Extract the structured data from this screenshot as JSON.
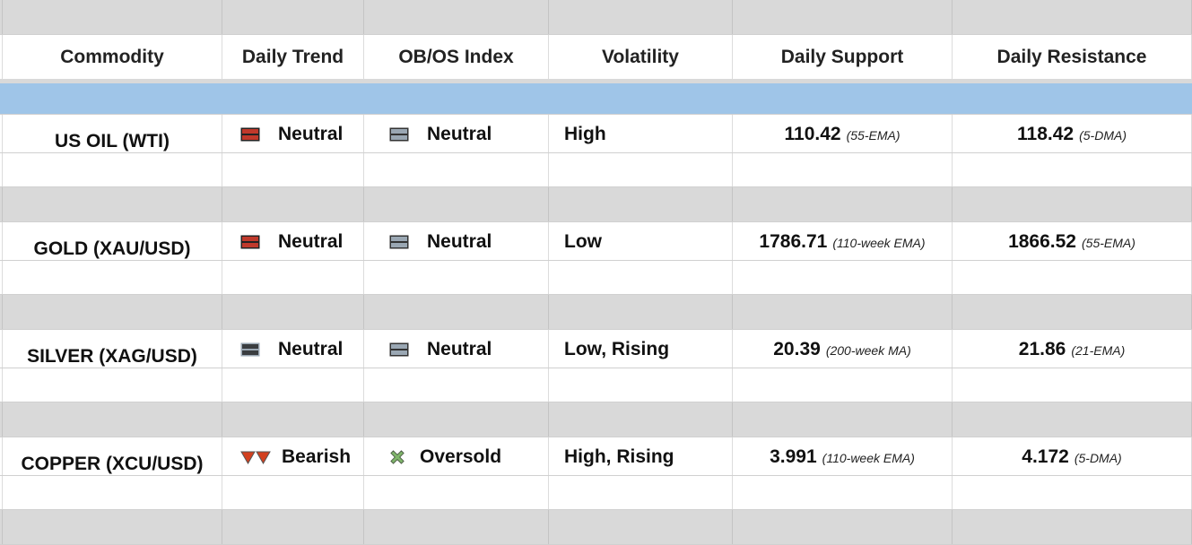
{
  "headers": [
    "Commodity",
    "Daily Trend",
    "OB/OS Index",
    "Volatility",
    "Daily Support",
    "Daily Resistance"
  ],
  "colors": {
    "header_band": "#9fc5e8",
    "separator": "#d9d9d9",
    "neutral_red": "#c0392b",
    "neutral_gray": "#9aa7b3",
    "neutral_dark": "#3a3d40",
    "bearish": "#d2401f",
    "oversold": "#7fb56a"
  },
  "rows": [
    {
      "commodity": "US OIL (WTI)",
      "trend": "Neutral",
      "trend_icon": "neutral-red-bars-icon",
      "obos": "Neutral",
      "obos_icon": "neutral-gray-bars-icon",
      "volatility": "High",
      "support": "110.42",
      "support_note": "(55-EMA)",
      "resistance": "118.42",
      "resistance_note": "(5-DMA)"
    },
    {
      "commodity": "GOLD (XAU/USD)",
      "trend": "Neutral",
      "trend_icon": "neutral-red-bars-icon",
      "obos": "Neutral",
      "obos_icon": "neutral-gray-bars-icon",
      "volatility": "Low",
      "support": "1786.71",
      "support_note": "(110-week EMA)",
      "resistance": "1866.52",
      "resistance_note": "(55-EMA)"
    },
    {
      "commodity": "SILVER (XAG/USD)",
      "trend": "Neutral",
      "trend_icon": "neutral-dark-bars-icon",
      "obos": "Neutral",
      "obos_icon": "neutral-gray-bars-icon",
      "volatility": "Low, Rising",
      "support": "20.39",
      "support_note": "(200-week MA)",
      "resistance": "21.86",
      "resistance_note": "(21-EMA)"
    },
    {
      "commodity": "COPPER (XCU/USD)",
      "trend": "Bearish",
      "trend_icon": "bearish-double-triangle-icon",
      "obos": "Oversold",
      "obos_icon": "oversold-cross-icon",
      "volatility": "High, Rising",
      "support": "3.991",
      "support_note": "(110-week EMA)",
      "resistance": "4.172",
      "resistance_note": "(5-DMA)"
    }
  ]
}
